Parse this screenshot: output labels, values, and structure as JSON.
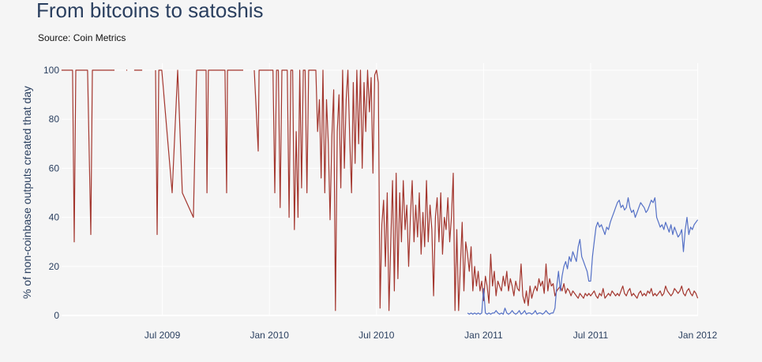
{
  "chart_data": {
    "type": "line",
    "title": "From bitcoins to satoshis",
    "subtitle": "Source: Coin Metrics",
    "xlabel": "",
    "ylabel": "% of non-coinbase outputs created that day",
    "x_unit": "months since Jan 2009",
    "xlim": [
      0,
      36
    ],
    "ylim": [
      0,
      100
    ],
    "grid": true,
    "x_ticks": [
      {
        "value": 6,
        "label": "Jul 2009"
      },
      {
        "value": 12,
        "label": "Jan 2010"
      },
      {
        "value": 18,
        "label": "Jul 2010"
      },
      {
        "value": 24,
        "label": "Jan 2011"
      },
      {
        "value": 30,
        "label": "Jul 2011"
      },
      {
        "value": 36,
        "label": "Jan 2012"
      }
    ],
    "y_ticks": [
      {
        "value": 0,
        "label": "0"
      },
      {
        "value": 20,
        "label": "20"
      },
      {
        "value": 40,
        "label": "40"
      },
      {
        "value": 60,
        "label": "60"
      },
      {
        "value": 80,
        "label": "80"
      },
      {
        "value": 100,
        "label": "100"
      }
    ],
    "series": [
      {
        "name": "red series",
        "color": "#a3362e",
        "points": [
          [
            0.35,
            100
          ],
          [
            0.97,
            100
          ],
          [
            1.06,
            30
          ],
          [
            1.15,
            100
          ],
          [
            1.81,
            100
          ],
          [
            1.99,
            33
          ],
          [
            2.08,
            100
          ],
          [
            3.32,
            100
          ],
          null,
          [
            3.98,
            100
          ],
          [
            4.03,
            100
          ],
          null,
          [
            4.42,
            100
          ],
          [
            4.87,
            100
          ],
          null,
          [
            5.62,
            100
          ],
          [
            5.71,
            33
          ],
          [
            5.8,
            100
          ],
          [
            5.97,
            100
          ],
          [
            6.55,
            50
          ],
          [
            6.86,
            100
          ],
          [
            7.12,
            50
          ],
          [
            7.74,
            40
          ],
          [
            7.92,
            100
          ],
          [
            8.45,
            100
          ],
          [
            8.5,
            50
          ],
          [
            8.58,
            100
          ],
          [
            9.51,
            100
          ],
          [
            9.6,
            50
          ],
          [
            9.65,
            100
          ],
          [
            10.53,
            100
          ],
          null,
          [
            11.15,
            100
          ],
          [
            11.37,
            67
          ],
          [
            11.42,
            100
          ],
          [
            11.64,
            100
          ],
          [
            11.95,
            100
          ]
        ],
        "dense_start": 12.0,
        "dense_step": 0.1,
        "dense_values": [
          100,
          100,
          100,
          50,
          100,
          100,
          44,
          100,
          100,
          100,
          100,
          40,
          100,
          100,
          35,
          75,
          40,
          100,
          52,
          100,
          100,
          50,
          100,
          100,
          100,
          100,
          100,
          75,
          88,
          56,
          100,
          50,
          88,
          70,
          39,
          73,
          92,
          2,
          75,
          90,
          52,
          100,
          60,
          88,
          100,
          72,
          50,
          95,
          62,
          100,
          70,
          100,
          60,
          95,
          75,
          100,
          83,
          97,
          58,
          98,
          100,
          95,
          3,
          37,
          47,
          20,
          50,
          2,
          30,
          55,
          10,
          58,
          15,
          50,
          30,
          55,
          35,
          45,
          20,
          40,
          55,
          30,
          45,
          32,
          50,
          25,
          42,
          28,
          55,
          30,
          45,
          35,
          8,
          40,
          48,
          30,
          50,
          25,
          40,
          35,
          48,
          30,
          40,
          58,
          2,
          35,
          2,
          20,
          38,
          10,
          30,
          25,
          18,
          28,
          10,
          20,
          12,
          18,
          10,
          14,
          6,
          16,
          12,
          5,
          25,
          12,
          18,
          8,
          14,
          12,
          10,
          16,
          12,
          18,
          10,
          15,
          12,
          8,
          14,
          11,
          10,
          21,
          8,
          5,
          10,
          4,
          12,
          7,
          10,
          12,
          10,
          15,
          12,
          14,
          9,
          21,
          10,
          15,
          12,
          13,
          8,
          10,
          11,
          12,
          10,
          13,
          9,
          11,
          10,
          8,
          10,
          9,
          8,
          7,
          9,
          8,
          7,
          9,
          8,
          9,
          8,
          9,
          10,
          8,
          7,
          9,
          8,
          11,
          7,
          8,
          9,
          8,
          10,
          9,
          8,
          9,
          8,
          10,
          12,
          9,
          8,
          10,
          11,
          8,
          9,
          8,
          7,
          9,
          10,
          8,
          9,
          8,
          10,
          9,
          11,
          8,
          9,
          8,
          9,
          10,
          8,
          9,
          12,
          10,
          9,
          8,
          9,
          11,
          10,
          9,
          10,
          12,
          9,
          8,
          10,
          11,
          9,
          8,
          10,
          9,
          7
        ]
      },
      {
        "name": "blue series",
        "color": "#5470c6",
        "points": [],
        "dense_start": 23.0,
        "dense_step": 0.1,
        "dense_values": [
          null,
          1,
          0.5,
          1,
          0.5,
          1,
          0.5,
          1,
          0.5,
          1,
          11,
          1,
          0.5,
          1,
          0.5,
          1,
          1,
          2,
          1,
          0.5,
          1,
          0.5,
          3,
          1,
          0.5,
          1,
          2,
          1,
          0.5,
          1,
          2,
          0.5,
          1,
          2,
          0.5,
          1,
          1,
          0.5,
          1,
          2,
          0.5,
          1,
          1,
          0.5,
          1,
          2,
          1,
          0.5,
          1,
          1,
          3,
          12,
          18,
          10,
          16,
          20,
          22,
          19,
          24,
          22,
          26,
          24,
          22,
          28,
          31,
          24,
          22,
          20,
          18,
          14,
          14,
          24,
          30,
          36,
          38,
          36,
          37,
          35,
          33,
          36,
          35,
          38,
          40,
          42,
          44,
          46,
          47,
          44,
          45,
          43,
          44,
          48,
          44,
          42,
          43,
          40,
          42,
          44,
          46,
          45,
          44,
          42,
          43,
          45,
          47,
          46,
          48,
          40,
          38,
          36,
          37,
          35,
          38,
          36,
          34,
          37,
          33,
          36,
          34,
          32,
          33,
          35,
          26,
          35,
          40,
          33,
          36,
          35,
          37,
          38,
          39
        ]
      }
    ]
  }
}
